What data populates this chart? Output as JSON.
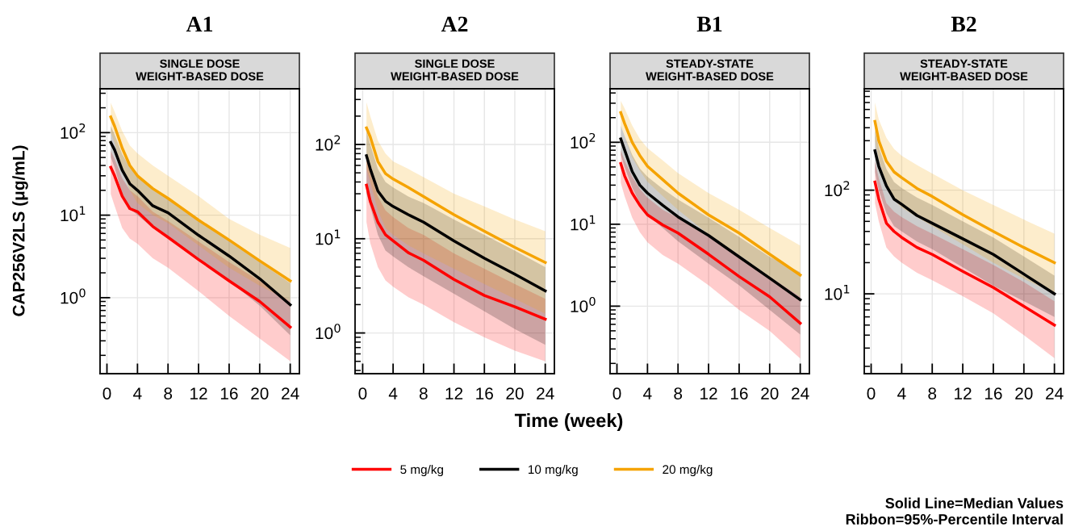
{
  "chart_data": [
    {
      "type": "line",
      "title": "A1",
      "subtitle": "SINGLE DOSE\nWEIGHT-BASED DOSE",
      "ylabel": "CAP256V2LS (μg/mL)",
      "log": "y",
      "grid": true,
      "legend": "bottom",
      "line_style": "solid",
      "marker": "none",
      "x": [
        0.5,
        1,
        2,
        3,
        4,
        6,
        8,
        12,
        16,
        20,
        24
      ],
      "xlim": [
        -0.9,
        25.2
      ],
      "xticks": [
        0,
        4,
        8,
        12,
        16,
        20,
        24
      ],
      "ylim": [
        0.12,
        340
      ],
      "yticks": [
        {
          "value": 1,
          "label": "10$^{0}$"
        },
        {
          "value": 10,
          "label": "10$^{1}$"
        },
        {
          "value": 100,
          "label": "10$^{2}$"
        }
      ],
      "series": [
        {
          "name": "5 mg/kg",
          "color": "#ff0000",
          "values": [
            38,
            30,
            17,
            12,
            11,
            7.3,
            5.4,
            2.9,
            1.6,
            0.9,
            0.44
          ],
          "upper": [
            60,
            48,
            28,
            20,
            17,
            11,
            8.5,
            4.8,
            2.7,
            1.6,
            0.9
          ],
          "lower": [
            18,
            13,
            7,
            5.2,
            4.5,
            3,
            2.3,
            1.2,
            0.6,
            0.32,
            0.17
          ]
        },
        {
          "name": "10 mg/kg",
          "color": "#000000",
          "values": [
            76,
            62,
            35,
            24,
            20,
            13,
            10.7,
            5.7,
            3.2,
            1.7,
            0.82
          ],
          "upper": [
            120,
            95,
            55,
            38,
            30,
            21,
            16,
            9,
            5,
            2.7,
            1.5
          ],
          "lower": [
            50,
            38,
            18,
            12,
            10,
            7,
            5.5,
            3,
            1.6,
            0.8,
            0.35
          ]
        },
        {
          "name": "20 mg/kg",
          "color": "#f5a300",
          "values": [
            155,
            120,
            65,
            40,
            30,
            21,
            16,
            8.7,
            5,
            2.8,
            1.6
          ],
          "upper": [
            230,
            180,
            105,
            70,
            56,
            40,
            30,
            17,
            9,
            5.8,
            4
          ],
          "lower": [
            100,
            75,
            35,
            20,
            14,
            10,
            8,
            4.3,
            2.3,
            1.4,
            0.9
          ]
        }
      ]
    },
    {
      "type": "line",
      "title": "A2",
      "subtitle": "SINGLE DOSE\nWEIGHT-BASED DOSE",
      "xlabel": "Time (week)",
      "log": "y",
      "grid": true,
      "line_style": "solid",
      "marker": "none",
      "x": [
        0.5,
        1,
        2,
        3,
        4,
        6,
        8,
        12,
        16,
        20,
        24
      ],
      "xlim": [
        -1,
        25.2
      ],
      "xticks": [
        0,
        4,
        8,
        12,
        16,
        20,
        24
      ],
      "ylim": [
        0.37,
        390
      ],
      "yticks": [
        {
          "value": 1,
          "label": "10$^{0}$"
        },
        {
          "value": 10,
          "label": "10$^{1}$"
        },
        {
          "value": 100,
          "label": "10$^{2}$"
        }
      ],
      "series": [
        {
          "color": "#ff0000",
          "values": [
            37,
            25,
            15,
            11,
            9.5,
            7.1,
            5.9,
            3.7,
            2.5,
            1.9,
            1.4
          ],
          "upper": [
            70,
            50,
            28,
            20,
            17,
            13,
            11,
            7,
            4.8,
            3.3,
            2.3
          ],
          "lower": [
            15,
            9,
            5,
            3.6,
            3.1,
            2.4,
            2,
            1.3,
            0.9,
            0.65,
            0.5
          ]
        },
        {
          "color": "#000000",
          "values": [
            76,
            55,
            32,
            25,
            22,
            18,
            15,
            9.5,
            6.2,
            4.2,
            2.8
          ],
          "upper": [
            140,
            100,
            55,
            40,
            35,
            28,
            24,
            16,
            11,
            7.5,
            5
          ],
          "lower": [
            30,
            22,
            11,
            7.5,
            6.5,
            5,
            4,
            2.6,
            1.7,
            1.1,
            0.75
          ]
        },
        {
          "color": "#f5a300",
          "values": [
            150,
            120,
            66,
            49,
            43,
            35,
            28,
            18,
            12,
            8.1,
            5.6
          ],
          "upper": [
            280,
            200,
            110,
            80,
            66,
            55,
            45,
            30,
            22,
            16,
            12
          ],
          "lower": [
            55,
            40,
            20,
            13,
            11,
            8.5,
            7,
            4.8,
            3.3,
            2.3,
            1.6
          ]
        }
      ]
    },
    {
      "type": "line",
      "title": "B1",
      "subtitle": "STEADY-STATE\nWEIGHT-BASED DOSE",
      "log": "y",
      "grid": true,
      "line_style": "solid",
      "marker": "none",
      "x": [
        0.5,
        1,
        2,
        3,
        4,
        6,
        8,
        12,
        16,
        20,
        24
      ],
      "xlim": [
        -0.9,
        25.2
      ],
      "xticks": [
        0,
        4,
        8,
        12,
        16,
        20,
        24
      ],
      "ylim": [
        0.15,
        450
      ],
      "yticks": [
        {
          "value": 1,
          "label": "10$^{0}$"
        },
        {
          "value": 10,
          "label": "10$^{1}$"
        },
        {
          "value": 100,
          "label": "10$^{2}$"
        }
      ],
      "series": [
        {
          "color": "#ff0000",
          "values": [
            55,
            39,
            24,
            17,
            13,
            9.8,
            7.8,
            4.3,
            2.3,
            1.3,
            0.62
          ],
          "upper": [
            80,
            60,
            38,
            27,
            21,
            15,
            12,
            7,
            4,
            2.3,
            1.3
          ],
          "lower": [
            32,
            22,
            12,
            8,
            6,
            4.2,
            3.3,
            1.8,
            0.9,
            0.5,
            0.23
          ]
        },
        {
          "color": "#000000",
          "values": [
            110,
            81,
            44,
            30,
            24,
            17,
            12.3,
            7.3,
            4,
            2.2,
            1.2
          ],
          "upper": [
            160,
            120,
            70,
            48,
            38,
            27,
            20,
            12,
            7,
            4,
            2.6
          ],
          "lower": [
            70,
            50,
            28,
            18,
            13,
            9,
            6.2,
            3.3,
            1.8,
            0.9,
            0.45
          ]
        },
        {
          "color": "#f5a300",
          "values": [
            230,
            170,
            100,
            69,
            51,
            35,
            24,
            13,
            7.8,
            4.3,
            2.4
          ],
          "upper": [
            320,
            260,
            160,
            110,
            85,
            60,
            42,
            24,
            15,
            9,
            5.5
          ],
          "lower": [
            160,
            120,
            65,
            45,
            33,
            22,
            15,
            7.5,
            4.2,
            2.3,
            1.3
          ]
        }
      ]
    },
    {
      "type": "line",
      "title": "B2",
      "subtitle": "STEADY-STATE\nWEIGHT-BASED DOSE",
      "log": "y",
      "grid": true,
      "line_style": "solid",
      "marker": "none",
      "x": [
        0.5,
        1,
        2,
        3,
        4,
        6,
        8,
        12,
        16,
        20,
        24
      ],
      "xlim": [
        -0.9,
        25.2
      ],
      "xticks": [
        0,
        4,
        8,
        12,
        16,
        20,
        24
      ],
      "ylim": [
        1.7,
        950
      ],
      "yticks": [
        {
          "value": 10,
          "label": "10$^{1}$"
        },
        {
          "value": 100,
          "label": "10$^{2}$"
        }
      ],
      "annotations": [
        "Solid Line=Median Values",
        "Ribbon=95%-Percentile Interval"
      ],
      "series": [
        {
          "color": "#ff0000",
          "values": [
            120,
            82,
            48,
            40,
            35,
            28,
            24,
            16.5,
            11.5,
            7.6,
            5
          ],
          "upper": [
            190,
            130,
            75,
            62,
            55,
            45,
            38,
            27,
            19,
            13,
            8.5
          ],
          "lower": [
            75,
            50,
            28,
            23,
            20,
            16,
            13.5,
            9.5,
            6.5,
            4,
            2.4
          ]
        },
        {
          "color": "#000000",
          "values": [
            240,
            170,
            110,
            82,
            73,
            57,
            48,
            34,
            24,
            15.5,
            10
          ],
          "upper": [
            380,
            260,
            160,
            120,
            105,
            85,
            72,
            50,
            35,
            23,
            15
          ],
          "lower": [
            150,
            100,
            60,
            45,
            40,
            32,
            27,
            18,
            12,
            8.5,
            6
          ]
        },
        {
          "color": "#f5a300",
          "values": [
            460,
            300,
            190,
            150,
            132,
            104,
            87,
            58,
            40,
            28,
            20
          ],
          "upper": [
            700,
            480,
            320,
            250,
            215,
            175,
            145,
            100,
            72,
            52,
            38
          ],
          "lower": [
            300,
            200,
            110,
            80,
            68,
            55,
            45,
            30,
            20,
            14,
            10
          ]
        }
      ]
    }
  ]
}
